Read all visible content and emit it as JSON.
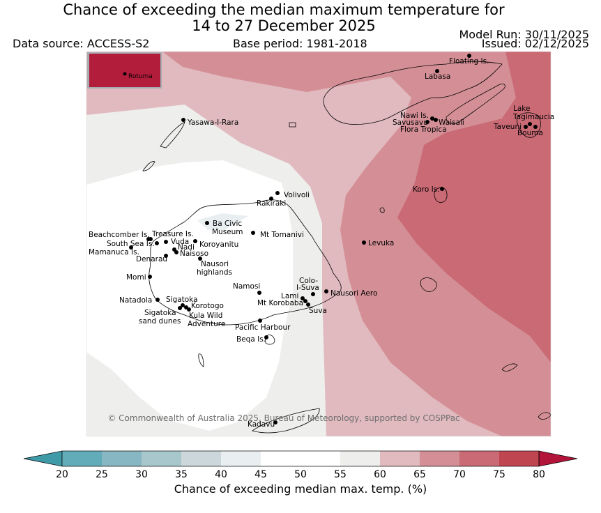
{
  "header": {
    "title_line1": "Chance of exceeding the median maximum temperature for",
    "title_line2": "14 to 27 December 2025",
    "data_source": "Data source: ACCESS-S2",
    "base_period": "Base period: 1981-2018",
    "model_run": "Model Run: 30/11/2025",
    "issued": "Issued: 02/12/2025"
  },
  "map": {
    "inset_label": "Rotuma",
    "copyright": "© Commonwealth of Australia 2025, Bureau of Meteorology, supported by COSPPac",
    "places": [
      {
        "id": "floating-is",
        "lines": [
          "Floating Is."
        ]
      },
      {
        "id": "labasa",
        "lines": [
          "Labasa"
        ]
      },
      {
        "id": "yasawa-i-rara",
        "lines": [
          "Yasawa-I-Rara"
        ]
      },
      {
        "id": "nawi-is",
        "lines": [
          "Nawi Is."
        ]
      },
      {
        "id": "savusavu",
        "lines": [
          "Savusavu"
        ]
      },
      {
        "id": "waisali",
        "lines": [
          "Waisali"
        ]
      },
      {
        "id": "flora-tropica",
        "lines": [
          "Flora Tropica"
        ]
      },
      {
        "id": "lake-tagimaucia",
        "lines": [
          "Lake",
          "Tagimaucia"
        ]
      },
      {
        "id": "taveuni",
        "lines": [
          "Taveuni"
        ]
      },
      {
        "id": "bouma",
        "lines": [
          "Bouma"
        ]
      },
      {
        "id": "koro-is",
        "lines": [
          "Koro Is."
        ]
      },
      {
        "id": "volivoli",
        "lines": [
          "Volivoli"
        ]
      },
      {
        "id": "rakiraki",
        "lines": [
          "Rakiraki"
        ]
      },
      {
        "id": "ba-civic-museum",
        "lines": [
          "Ba Civic",
          "Museum"
        ]
      },
      {
        "id": "mt-tomanivi",
        "lines": [
          "Mt Tomanivi"
        ]
      },
      {
        "id": "levuka",
        "lines": [
          "Levuka"
        ]
      },
      {
        "id": "beachcomber-is",
        "lines": [
          "Beachcomber Is."
        ]
      },
      {
        "id": "treasure-is",
        "lines": [
          "Treasure Is."
        ]
      },
      {
        "id": "south-sea-is",
        "lines": [
          "South Sea Is."
        ]
      },
      {
        "id": "vuda",
        "lines": [
          "Vuda"
        ]
      },
      {
        "id": "koroyanitu",
        "lines": [
          "Koroyanitu"
        ]
      },
      {
        "id": "nadi",
        "lines": [
          "Nadi"
        ]
      },
      {
        "id": "mamanuca-is",
        "lines": [
          "Mamanuca Is."
        ]
      },
      {
        "id": "naisoso",
        "lines": [
          "Naisoso"
        ]
      },
      {
        "id": "denarau",
        "lines": [
          "Denarau"
        ]
      },
      {
        "id": "nausori-highlands",
        "lines": [
          "Nausori",
          "highlands"
        ]
      },
      {
        "id": "momi",
        "lines": [
          "Momi"
        ]
      },
      {
        "id": "colo-i-suva",
        "lines": [
          "Colo-",
          "I-Suva"
        ]
      },
      {
        "id": "namosi",
        "lines": [
          "Namosi"
        ]
      },
      {
        "id": "nausori-aero",
        "lines": [
          "Nausori Aero"
        ]
      },
      {
        "id": "lami",
        "lines": [
          "Lami"
        ]
      },
      {
        "id": "natadola",
        "lines": [
          "Natadola"
        ]
      },
      {
        "id": "sigatoka",
        "lines": [
          "Sigatoka"
        ]
      },
      {
        "id": "mt-korobaba",
        "lines": [
          "Mt Korobaba"
        ]
      },
      {
        "id": "korotogo",
        "lines": [
          "Korotogo"
        ]
      },
      {
        "id": "suva",
        "lines": [
          "Suva"
        ]
      },
      {
        "id": "sigatoka-sand-dunes",
        "lines": [
          "Sigatoka",
          "sand dunes"
        ]
      },
      {
        "id": "kula-wild-adventure",
        "lines": [
          "Kula Wild",
          "Adventure"
        ]
      },
      {
        "id": "pacific-harbour",
        "lines": [
          "Pacific Harbour"
        ]
      },
      {
        "id": "beqa-is",
        "lines": [
          "Beqa Is."
        ]
      },
      {
        "id": "kadavu",
        "lines": [
          "Kadavu"
        ]
      }
    ]
  },
  "colorbar": {
    "label": "Chance of exceeding median max. temp. (%)",
    "ticks": [
      "20",
      "25",
      "30",
      "35",
      "40",
      "45",
      "50",
      "55",
      "60",
      "65",
      "70",
      "75",
      "80"
    ],
    "under_color": "#3f9aa8",
    "over_color": "#b2143a",
    "bin_colors": [
      "#62abb8",
      "#86b7c2",
      "#a7c7cc",
      "#cbd7da",
      "#e9eff1",
      "#ffffff",
      "#ffffff",
      "#eeeeec",
      "#e1babf",
      "#d48f96",
      "#c96a75",
      "#bf4550"
    ]
  }
}
